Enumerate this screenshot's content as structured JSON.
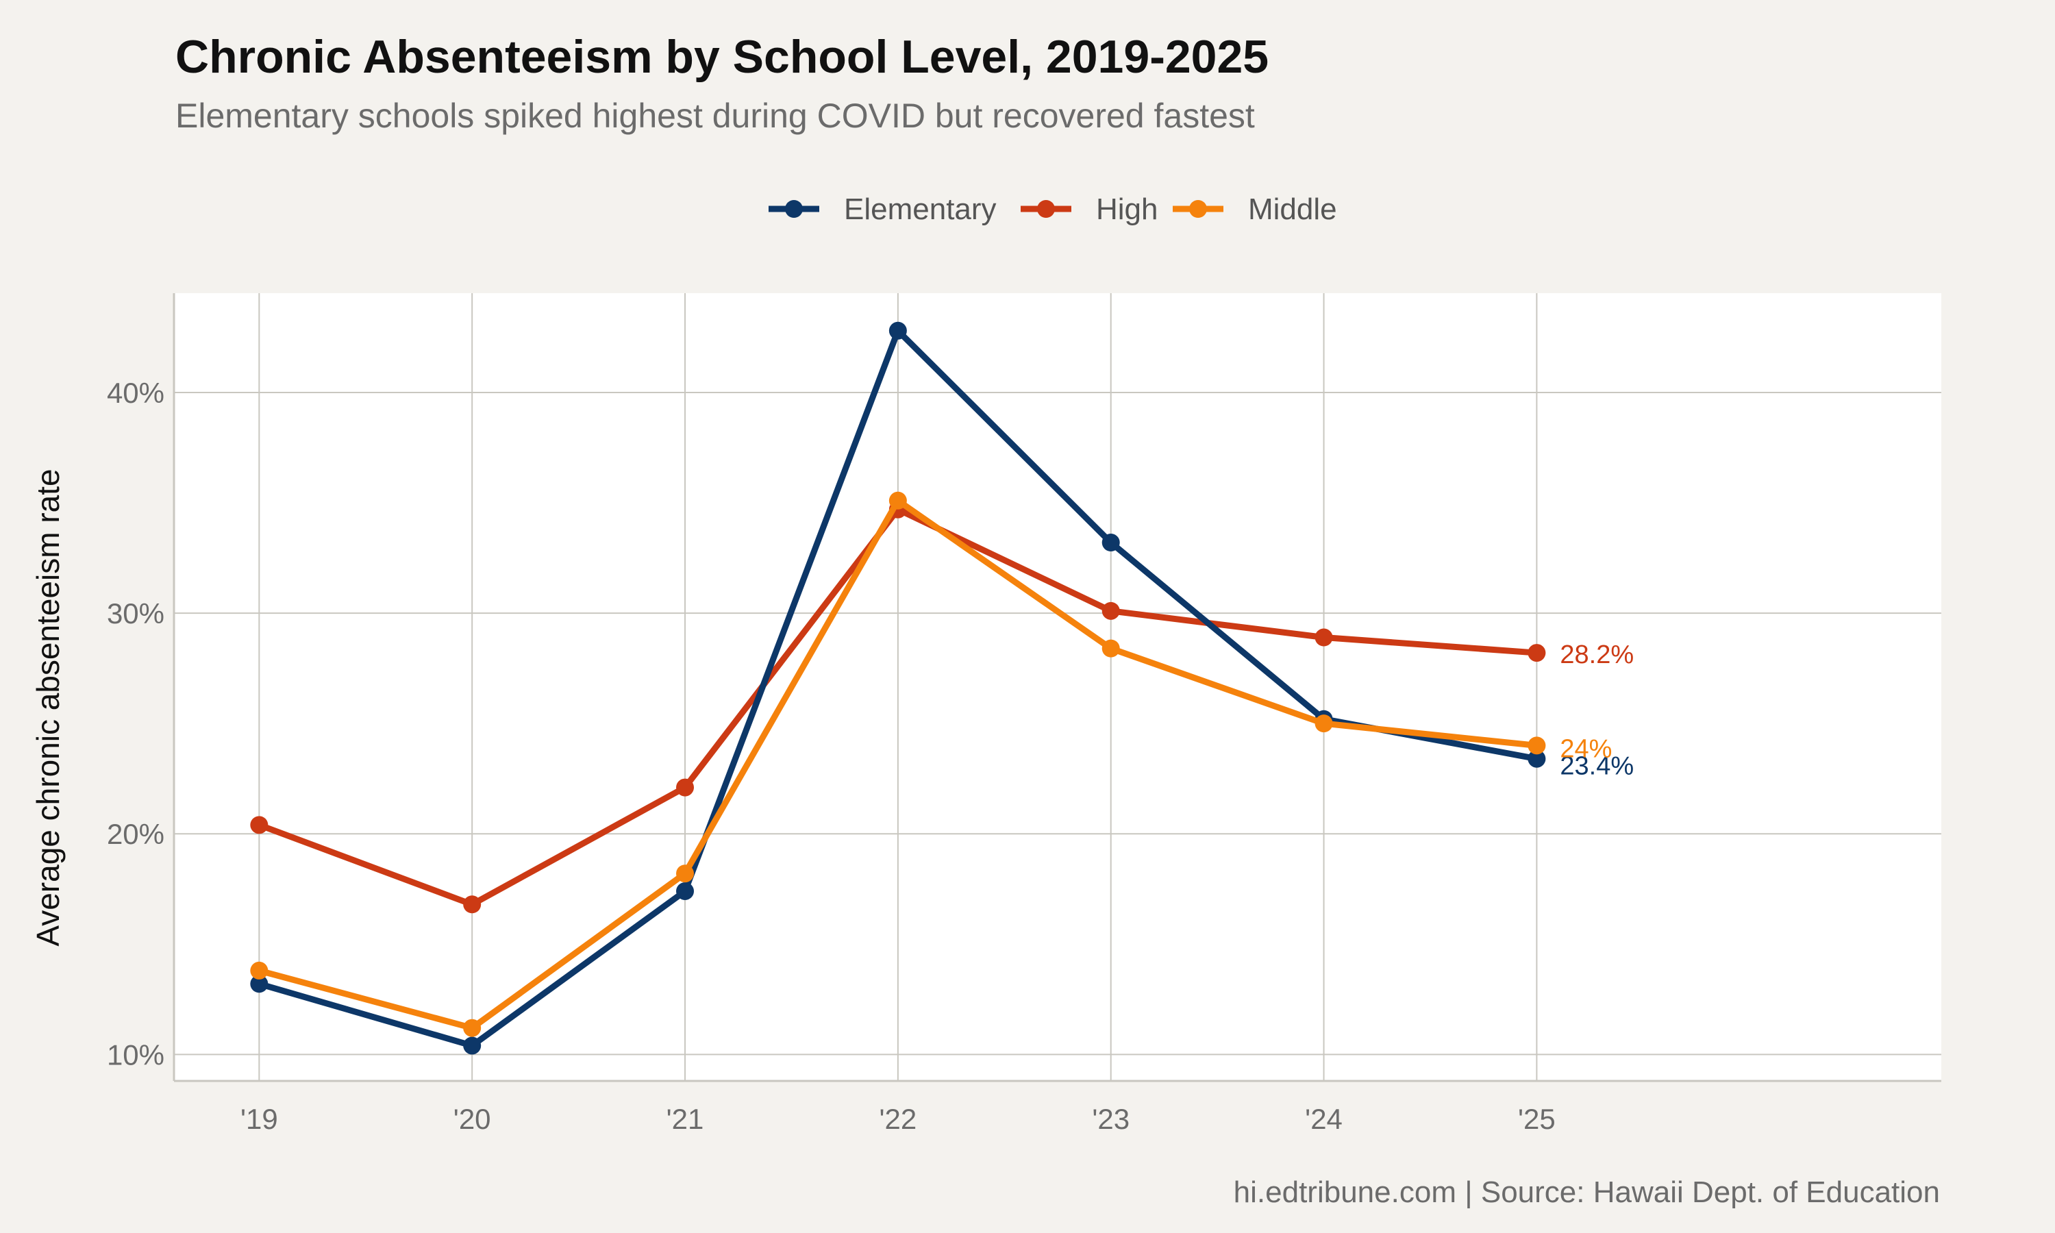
{
  "header": {
    "title": "Chronic Absenteeism by School Level, 2019-2025",
    "subtitle": "Elementary schools spiked highest during COVID but recovered fastest"
  },
  "caption": "hi.edtribune.com | Source: Hawaii Dept. of Education",
  "chart_data": {
    "type": "line",
    "title": "Chronic Absenteeism by School Level, 2019-2025",
    "subtitle": "Elementary schools spiked highest during COVID but recovered fastest",
    "xlabel": "",
    "ylabel": "Average chronic absenteeism rate",
    "x": [
      2019,
      2020,
      2021,
      2022,
      2023,
      2024,
      2025
    ],
    "x_tick_labels": [
      "'19",
      "'20",
      "'21",
      "'22",
      "'23",
      "'24",
      "'25"
    ],
    "xlim": [
      2018.6,
      2026.9
    ],
    "ylim": [
      8.8,
      44.5
    ],
    "y_ticks": [
      10,
      20,
      30,
      40
    ],
    "y_tick_labels": [
      "10%",
      "20%",
      "30%",
      "40%"
    ],
    "grid": true,
    "legend_position": "top",
    "series": [
      {
        "name": "Elementary",
        "color": "#0d3768",
        "values": [
          13.2,
          10.4,
          17.4,
          42.8,
          33.2,
          25.2,
          23.4
        ],
        "end_label": "23.4%"
      },
      {
        "name": "High",
        "color": "#cc3a14",
        "values": [
          20.4,
          16.8,
          22.1,
          34.7,
          30.1,
          28.9,
          28.2
        ],
        "end_label": "28.2%"
      },
      {
        "name": "Middle",
        "color": "#f5820c",
        "values": [
          13.8,
          11.2,
          18.2,
          35.1,
          28.4,
          25.0,
          24.0
        ],
        "end_label": "24%"
      }
    ]
  }
}
